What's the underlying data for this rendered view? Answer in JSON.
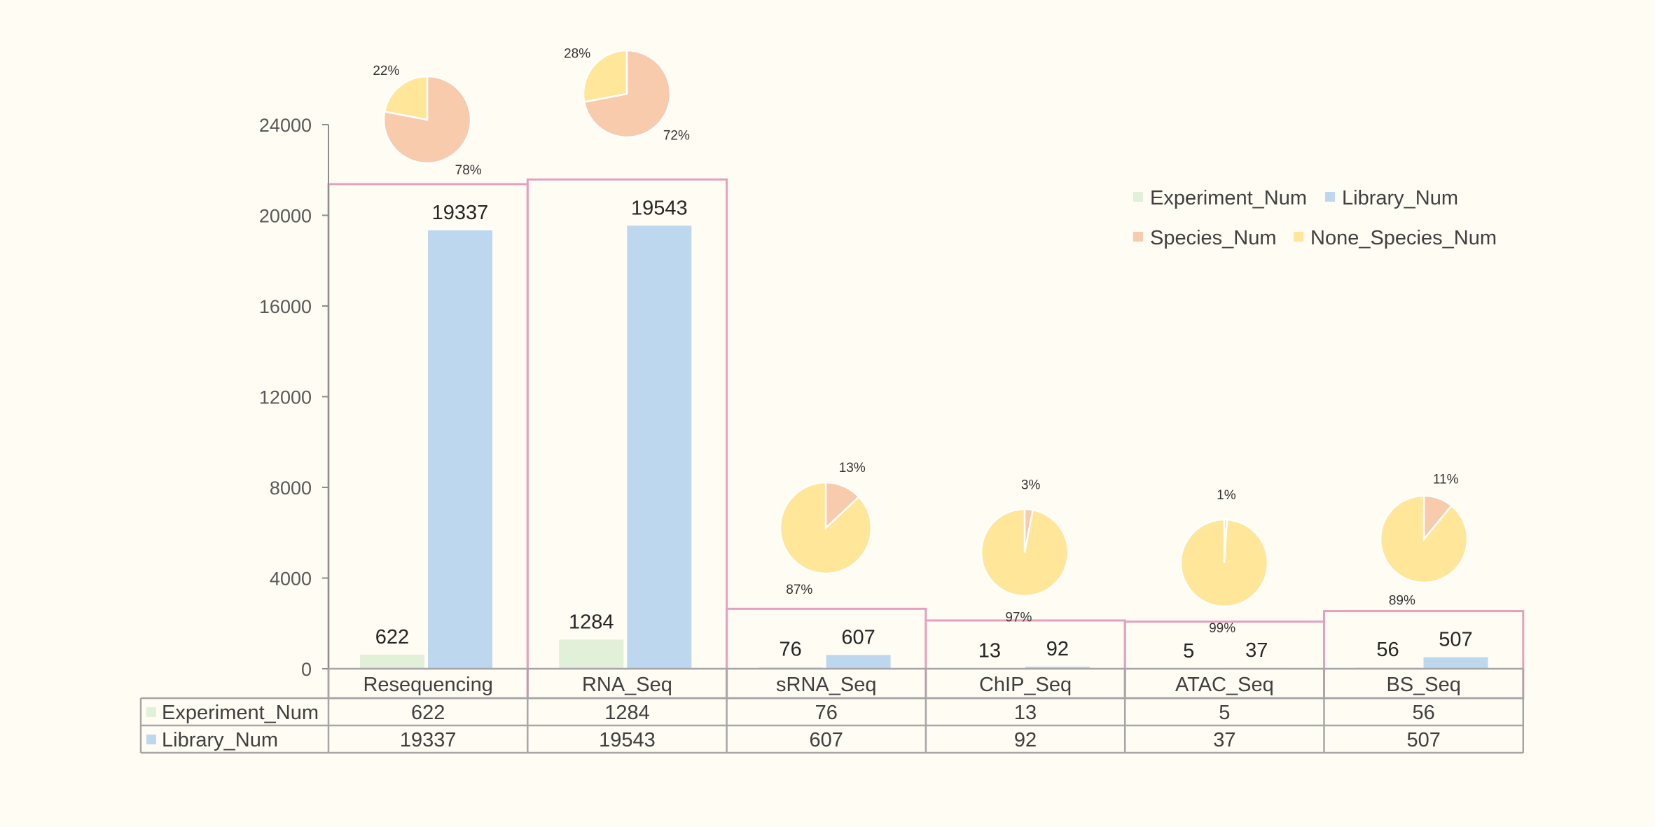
{
  "chart_data": {
    "type": "bar",
    "categories": [
      "Resequencing",
      "RNA_Seq",
      "sRNA_Seq",
      "ChIP_Seq",
      "ATAC_Seq",
      "BS_Seq"
    ],
    "series": [
      {
        "name": "Experiment_Num",
        "color": "#e2efd9",
        "values": [
          622,
          1284,
          76,
          13,
          5,
          56
        ]
      },
      {
        "name": "Library_Num",
        "color": "#bdd7ee",
        "values": [
          19337,
          19543,
          607,
          92,
          37,
          507
        ]
      }
    ],
    "ylim": [
      0,
      24000
    ],
    "yticks": [
      0,
      4000,
      8000,
      12000,
      16000,
      20000,
      24000
    ],
    "data_table": true,
    "pies": {
      "series": [
        {
          "name": "Species_Num",
          "color": "#f8cbad"
        },
        {
          "name": "None_Species_Num",
          "color": "#ffe699"
        }
      ],
      "species_pct": [
        78,
        72,
        13,
        3,
        1,
        11
      ],
      "none_species_pct": [
        22,
        28,
        87,
        97,
        99,
        89
      ],
      "species_labels": [
        "78%",
        "72%",
        "13%",
        "3%",
        "1%",
        "11%"
      ],
      "none_species_labels": [
        "22%",
        "28%",
        "87%",
        "97%",
        "99%",
        "89%"
      ]
    },
    "legend": {
      "placement": "top-right",
      "items": [
        "Experiment_Num",
        "Library_Num",
        "Species_Num",
        "None_Species_Num"
      ]
    }
  }
}
